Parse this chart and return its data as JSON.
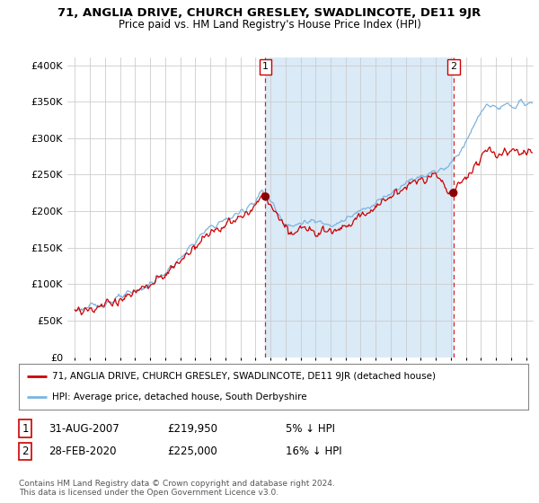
{
  "title1": "71, ANGLIA DRIVE, CHURCH GRESLEY, SWADLINCOTE, DE11 9JR",
  "title2": "Price paid vs. HM Land Registry's House Price Index (HPI)",
  "ylabel_ticks": [
    "£0",
    "£50K",
    "£100K",
    "£150K",
    "£200K",
    "£250K",
    "£300K",
    "£350K",
    "£400K"
  ],
  "ytick_values": [
    0,
    50000,
    100000,
    150000,
    200000,
    250000,
    300000,
    350000,
    400000
  ],
  "ylim": [
    0,
    410000
  ],
  "xlim_start": 1994.5,
  "xlim_end": 2025.5,
  "sale1_date": 2007.67,
  "sale1_price": 219950,
  "sale1_label": "1",
  "sale2_date": 2020.17,
  "sale2_price": 225000,
  "sale2_label": "2",
  "legend_line1": "71, ANGLIA DRIVE, CHURCH GRESLEY, SWADLINCOTE, DE11 9JR (detached house)",
  "legend_line2": "HPI: Average price, detached house, South Derbyshire",
  "table_row1": [
    "1",
    "31-AUG-2007",
    "£219,950",
    "5% ↓ HPI"
  ],
  "table_row2": [
    "2",
    "28-FEB-2020",
    "£225,000",
    "16% ↓ HPI"
  ],
  "footer": "Contains HM Land Registry data © Crown copyright and database right 2024.\nThis data is licensed under the Open Government Licence v3.0.",
  "hpi_color": "#7ab4e0",
  "price_color": "#cc0000",
  "shade_color": "#daeaf7",
  "sale_marker_color": "#8b0000",
  "vline_color": "#cc0000",
  "bg_color": "#ffffff",
  "grid_color": "#cccccc",
  "hpi_anchors_x": [
    1995,
    1996,
    1997,
    1998,
    1999,
    2000,
    2001,
    2002,
    2003,
    2004,
    2005,
    2006,
    2007,
    2007.5,
    2008,
    2008.5,
    2009,
    2009.5,
    2010,
    2011,
    2012,
    2013,
    2014,
    2015,
    2016,
    2017,
    2018,
    2019,
    2019.5,
    2020,
    2021,
    2022,
    2022.5,
    2023,
    2024,
    2025
  ],
  "hpi_anchors_y": [
    65000,
    68000,
    74000,
    81000,
    90000,
    100000,
    115000,
    135000,
    158000,
    178000,
    188000,
    198000,
    215000,
    228000,
    215000,
    198000,
    183000,
    178000,
    185000,
    185000,
    183000,
    188000,
    200000,
    212000,
    225000,
    240000,
    248000,
    255000,
    258000,
    265000,
    295000,
    335000,
    348000,
    340000,
    345000,
    348000
  ],
  "price_offset_anchors_x": [
    1995,
    2000,
    2003,
    2005,
    2007,
    2008,
    2010,
    2013,
    2016,
    2019,
    2020,
    2022,
    2025
  ],
  "price_offset_anchors_y": [
    -3000,
    -2000,
    -5000,
    -8000,
    -8000,
    -5000,
    -10000,
    -8000,
    -5000,
    -5000,
    -40000,
    -60000,
    -65000
  ]
}
